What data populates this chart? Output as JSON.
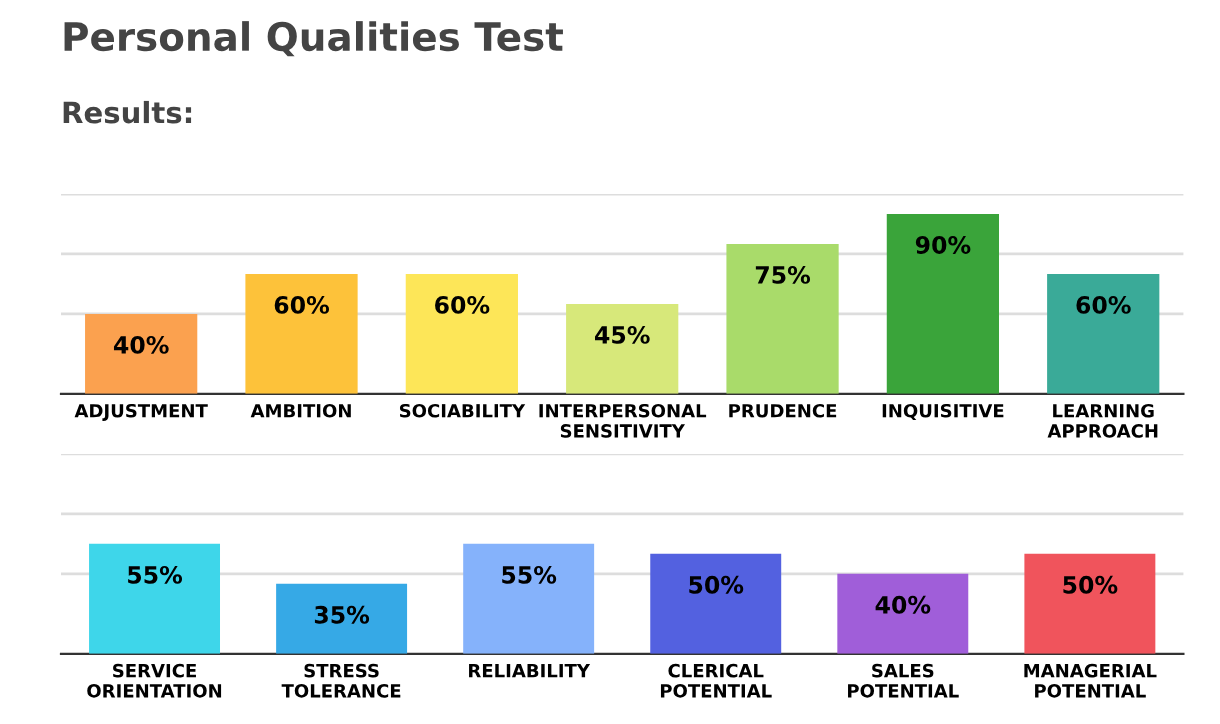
{
  "chart_data": [
    {
      "type": "bar",
      "title": "Personal Qualities Test",
      "subtitle": "Results:",
      "categories": [
        "ADJUSTMENT",
        "AMBITION",
        "SOCIABILITY",
        "INTERPERSONAL\nSENSITIVITY",
        "PRUDENCE",
        "INQUISITIVE",
        "LEARNING\nAPPROACH"
      ],
      "values": [
        40,
        60,
        60,
        45,
        75,
        90,
        60
      ],
      "value_labels": [
        "40%",
        "60%",
        "60%",
        "45%",
        "75%",
        "90%",
        "60%"
      ],
      "colors": [
        "#fba14f",
        "#fdc23a",
        "#fde658",
        "#d7e87a",
        "#a9db6a",
        "#3aa43a",
        "#3aaa98"
      ],
      "ylim": [
        0,
        100
      ],
      "tick_labels": "x",
      "ref_lines": [
        {
          "axis": "y",
          "value": 40,
          "color": "#dddddd"
        },
        {
          "axis": "y",
          "value": 70,
          "color": "#dddddd"
        },
        {
          "axis": "y",
          "value": 100,
          "color": "#dddddd"
        }
      ]
    },
    {
      "type": "bar",
      "categories": [
        "SERVICE\nORIENTATION",
        "STRESS\nTOLERANCE",
        "RELIABILITY",
        "CLERICAL\nPOTENTIAL",
        "SALES\nPOTENTIAL",
        "MANAGERIAL\nPOTENTIAL"
      ],
      "values": [
        55,
        35,
        55,
        50,
        40,
        50
      ],
      "value_labels": [
        "55%",
        "35%",
        "55%",
        "50%",
        "40%",
        "50%"
      ],
      "colors": [
        "#3ed6ea",
        "#36a9e6",
        "#85b2fb",
        "#5361e0",
        "#a05ed9",
        "#f0545c"
      ],
      "ylim": [
        0,
        100
      ],
      "tick_labels": "x",
      "ref_lines": [
        {
          "axis": "y",
          "value": 40,
          "color": "#dddddd"
        },
        {
          "axis": "y",
          "value": 70,
          "color": "#dddddd"
        },
        {
          "axis": "y",
          "value": 100,
          "color": "#dddddd"
        }
      ]
    }
  ]
}
